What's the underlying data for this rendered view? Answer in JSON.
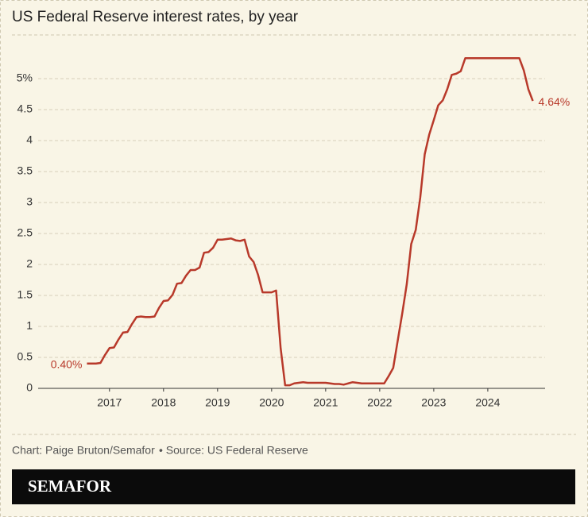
{
  "chart_data": {
    "type": "line",
    "title": "US Federal Reserve interest rates, by year",
    "x": [
      2016.583,
      2016.667,
      2016.75,
      2016.833,
      2016.917,
      2017,
      2017.083,
      2017.167,
      2017.25,
      2017.333,
      2017.417,
      2017.5,
      2017.583,
      2017.667,
      2017.75,
      2017.833,
      2017.917,
      2018,
      2018.083,
      2018.167,
      2018.25,
      2018.333,
      2018.417,
      2018.5,
      2018.583,
      2018.667,
      2018.75,
      2018.833,
      2018.917,
      2019,
      2019.083,
      2019.167,
      2019.25,
      2019.333,
      2019.417,
      2019.5,
      2019.583,
      2019.667,
      2019.75,
      2019.833,
      2019.917,
      2020,
      2020.083,
      2020.167,
      2020.25,
      2020.333,
      2020.417,
      2020.5,
      2020.583,
      2020.667,
      2020.75,
      2020.833,
      2020.917,
      2021,
      2021.083,
      2021.167,
      2021.25,
      2021.333,
      2021.417,
      2021.5,
      2021.583,
      2021.667,
      2021.75,
      2021.833,
      2021.917,
      2022,
      2022.083,
      2022.167,
      2022.25,
      2022.333,
      2022.417,
      2022.5,
      2022.583,
      2022.667,
      2022.75,
      2022.833,
      2022.917,
      2023,
      2023.083,
      2023.167,
      2023.25,
      2023.333,
      2023.417,
      2023.5,
      2023.583,
      2023.667,
      2023.75,
      2023.833,
      2023.917,
      2024,
      2024.083,
      2024.167,
      2024.25,
      2024.333,
      2024.417,
      2024.5,
      2024.583,
      2024.667,
      2024.75,
      2024.833
    ],
    "values": [
      0.4,
      0.4,
      0.4,
      0.41,
      0.54,
      0.65,
      0.66,
      0.79,
      0.9,
      0.91,
      1.04,
      1.15,
      1.16,
      1.15,
      1.15,
      1.16,
      1.3,
      1.41,
      1.42,
      1.51,
      1.69,
      1.7,
      1.82,
      1.91,
      1.91,
      1.95,
      2.19,
      2.2,
      2.27,
      2.4,
      2.4,
      2.41,
      2.42,
      2.39,
      2.38,
      2.4,
      2.13,
      2.04,
      1.83,
      1.55,
      1.55,
      1.55,
      1.58,
      0.65,
      0.05,
      0.05,
      0.08,
      0.09,
      0.1,
      0.09,
      0.09,
      0.09,
      0.09,
      0.09,
      0.08,
      0.07,
      0.07,
      0.06,
      0.08,
      0.1,
      0.09,
      0.08,
      0.08,
      0.08,
      0.08,
      0.08,
      0.08,
      0.2,
      0.33,
      0.77,
      1.21,
      1.68,
      2.33,
      2.56,
      3.08,
      3.78,
      4.1,
      4.33,
      4.57,
      4.65,
      4.83,
      5.06,
      5.08,
      5.12,
      5.33,
      5.33,
      5.33,
      5.33,
      5.33,
      5.33,
      5.33,
      5.33,
      5.33,
      5.33,
      5.33,
      5.33,
      5.33,
      5.13,
      4.83,
      4.64
    ],
    "value_labels": [
      "0.40%",
      null,
      null,
      null,
      null,
      null,
      null,
      null,
      null,
      null,
      null,
      null,
      null,
      null,
      null,
      null,
      null,
      null,
      null,
      null,
      null,
      null,
      null,
      null,
      null,
      null,
      null,
      null,
      null,
      null,
      null,
      null,
      null,
      null,
      null,
      null,
      null,
      null,
      null,
      null,
      null,
      null,
      null,
      null,
      null,
      null,
      null,
      null,
      null,
      null,
      null,
      null,
      null,
      null,
      null,
      null,
      null,
      null,
      null,
      null,
      null,
      null,
      null,
      null,
      null,
      null,
      null,
      null,
      null,
      null,
      null,
      null,
      null,
      null,
      null,
      null,
      null,
      null,
      null,
      null,
      null,
      null,
      null,
      null,
      null,
      null,
      null,
      null,
      null,
      null,
      null,
      null,
      null,
      null,
      null,
      null,
      null,
      null,
      null,
      "4.64%"
    ],
    "color": "#b8392a",
    "xlim": [
      2015.68,
      2025.06
    ],
    "xticks": [
      2017,
      2018,
      2019,
      2020,
      2021,
      2022,
      2023,
      2024
    ],
    "ylim": [
      0,
      5.5
    ],
    "yticks": [
      0,
      0.5,
      1,
      1.5,
      2,
      2.5,
      3,
      3.5,
      4,
      4.5,
      {
        "value": 5,
        "label": "5%"
      }
    ],
    "grid": true
  },
  "footer": {
    "credit": "Chart: Paige Bruton/Semafor",
    "source": "• Source: US Federal Reserve",
    "brand": "SEMAFOR"
  }
}
